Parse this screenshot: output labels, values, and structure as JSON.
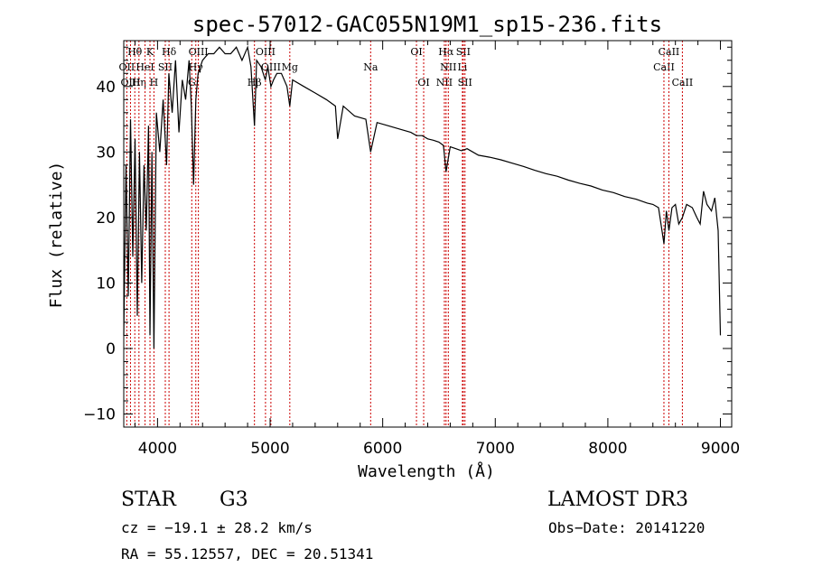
{
  "chart_data": {
    "type": "line",
    "title": "spec-57012-GAC055N19M1_sp15-236.fits",
    "xlabel": "Wavelength (Å)",
    "ylabel": "Flux (relative)",
    "xlim": [
      3700,
      9100
    ],
    "ylim": [
      -12,
      47
    ],
    "xticks": [
      4000,
      5000,
      6000,
      7000,
      8000,
      9000
    ],
    "yticks": [
      -10,
      0,
      10,
      20,
      30,
      40
    ],
    "grid": false,
    "series": [
      {
        "name": "flux",
        "x": [
          3700,
          3720,
          3740,
          3760,
          3780,
          3800,
          3820,
          3840,
          3860,
          3880,
          3900,
          3920,
          3933,
          3950,
          3968,
          3990,
          4020,
          4050,
          4080,
          4100,
          4130,
          4160,
          4190,
          4220,
          4250,
          4280,
          4300,
          4320,
          4340,
          4360,
          4400,
          4450,
          4500,
          4550,
          4600,
          4650,
          4700,
          4750,
          4800,
          4830,
          4861,
          4880,
          4920,
          4957,
          4980,
          5007,
          5030,
          5060,
          5100,
          5150,
          5175,
          5200,
          5300,
          5400,
          5500,
          5580,
          5600,
          5650,
          5750,
          5850,
          5893,
          5950,
          6050,
          6150,
          6250,
          6300,
          6350,
          6400,
          6450,
          6500,
          6540,
          6563,
          6600,
          6650,
          6700,
          6750,
          6850,
          6950,
          7050,
          7150,
          7250,
          7350,
          7450,
          7550,
          7650,
          7750,
          7850,
          7950,
          8050,
          8150,
          8250,
          8350,
          8400,
          8450,
          8498,
          8520,
          8542,
          8570,
          8600,
          8630,
          8662,
          8700,
          8750,
          8790,
          8820,
          8850,
          8880,
          8920,
          8950,
          8980,
          9000
        ],
        "values": [
          2,
          28,
          8,
          35,
          14,
          32,
          5,
          30,
          10,
          28,
          18,
          34,
          2,
          30,
          0,
          36,
          30,
          38,
          28,
          42,
          36,
          44,
          33,
          41,
          38,
          44,
          37,
          25,
          38,
          42,
          44,
          45,
          45,
          46,
          45,
          45,
          46,
          44,
          46,
          43,
          34,
          44,
          43,
          41,
          43,
          40,
          41,
          42,
          42,
          40,
          37,
          41,
          40,
          39,
          38,
          37,
          32,
          37,
          35.5,
          35,
          30,
          34.5,
          34,
          33.5,
          33,
          32.5,
          32.5,
          32,
          31.8,
          31.5,
          31,
          27,
          30.8,
          30.5,
          30.2,
          30.5,
          29.5,
          29.2,
          28.8,
          28.3,
          27.8,
          27.2,
          26.7,
          26.3,
          25.7,
          25.2,
          24.8,
          24.2,
          23.8,
          23.2,
          22.8,
          22.2,
          22,
          21.5,
          16,
          21,
          18,
          21.5,
          22,
          19,
          20,
          22,
          21.5,
          20,
          19,
          24,
          22,
          21,
          23,
          18,
          2
        ]
      }
    ],
    "lines": [
      {
        "label": "Hθ",
        "x": 3798,
        "row": 1
      },
      {
        "label": "OII",
        "x": 3727,
        "row": 2
      },
      {
        "label": "OIII",
        "x": 3760,
        "row": 3
      },
      {
        "label": "Hη",
        "x": 3835,
        "row": 3
      },
      {
        "label": "HeI",
        "x": 3889,
        "row": 2
      },
      {
        "label": "K",
        "x": 3933,
        "row": 1
      },
      {
        "label": "H",
        "x": 3968,
        "row": 3
      },
      {
        "label": "SII",
        "x": 4069,
        "row": 2
      },
      {
        "label": "Hδ",
        "x": 4102,
        "row": 1
      },
      {
        "label": "G",
        "x": 4304,
        "row": 3
      },
      {
        "label": "Hγ",
        "x": 4340,
        "row": 2
      },
      {
        "label": "OIII",
        "x": 4363,
        "row": 1
      },
      {
        "label": "Hβ",
        "x": 4861,
        "row": 3
      },
      {
        "label": "OIII",
        "x": 4959,
        "row": 1
      },
      {
        "label": "OIII",
        "x": 5007,
        "row": 2
      },
      {
        "label": "Mg",
        "x": 5175,
        "row": 2
      },
      {
        "label": "Na",
        "x": 5893,
        "row": 2
      },
      {
        "label": "OI",
        "x": 6300,
        "row": 1
      },
      {
        "label": "OI",
        "x": 6364,
        "row": 3
      },
      {
        "label": "NII",
        "x": 6548,
        "row": 3
      },
      {
        "label": "Hα",
        "x": 6563,
        "row": 1
      },
      {
        "label": "NII",
        "x": 6583,
        "row": 2
      },
      {
        "label": "Li",
        "x": 6708,
        "row": 2
      },
      {
        "label": "SII",
        "x": 6716,
        "row": 1
      },
      {
        "label": "SII",
        "x": 6731,
        "row": 3
      },
      {
        "label": "CaII",
        "x": 8498,
        "row": 2
      },
      {
        "label": "CaII",
        "x": 8542,
        "row": 1
      },
      {
        "label": "CaII",
        "x": 8662,
        "row": 3
      }
    ]
  },
  "info": {
    "class": "STAR",
    "subclass": "G3",
    "survey": "LAMOST DR3",
    "cz": "cz = −19.1 ± 28.2 km/s",
    "obs_date": "Obs−Date: 20141220",
    "coords": "RA =  55.12557, DEC =  20.51341"
  }
}
